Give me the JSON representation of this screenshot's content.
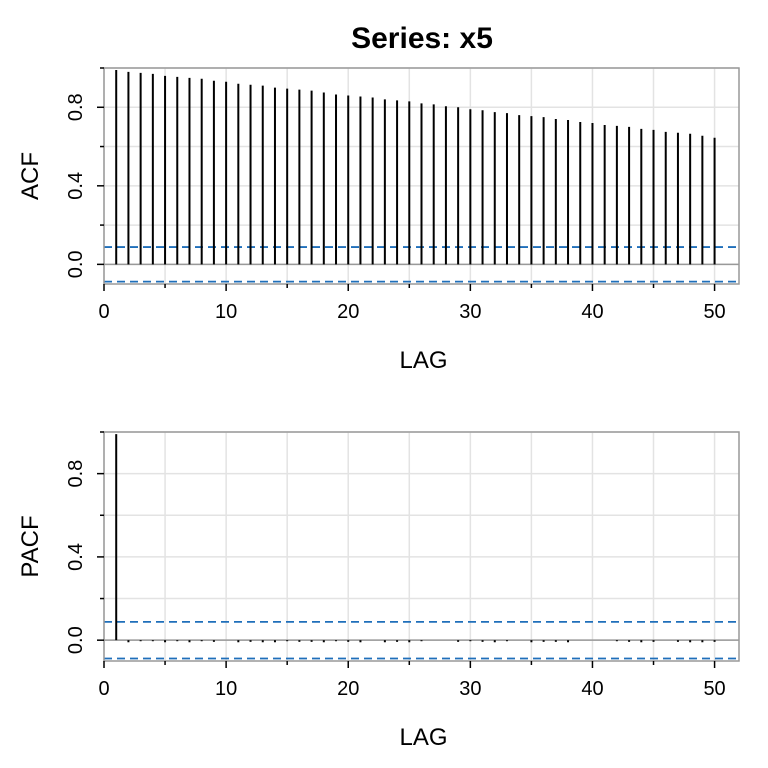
{
  "title": "Series:  x5",
  "chart_data": [
    {
      "type": "bar",
      "panel": "top",
      "xlabel": "LAG",
      "ylabel": "ACF",
      "xlim": [
        0,
        52
      ],
      "ylim": [
        -0.1,
        1.0
      ],
      "xticks": [
        0,
        10,
        20,
        30,
        40,
        50
      ],
      "yticks": [
        0.0,
        0.4,
        0.8
      ],
      "grid": true,
      "confidence_bounds": [
        0.088,
        -0.088
      ],
      "lags": [
        1,
        2,
        3,
        4,
        5,
        6,
        7,
        8,
        9,
        10,
        11,
        12,
        13,
        14,
        15,
        16,
        17,
        18,
        19,
        20,
        21,
        22,
        23,
        24,
        25,
        26,
        27,
        28,
        29,
        30,
        31,
        32,
        33,
        34,
        35,
        36,
        37,
        38,
        39,
        40,
        41,
        42,
        43,
        44,
        45,
        46,
        47,
        48,
        49,
        50
      ],
      "values": [
        0.99,
        0.98,
        0.975,
        0.97,
        0.96,
        0.955,
        0.95,
        0.945,
        0.935,
        0.93,
        0.92,
        0.915,
        0.91,
        0.9,
        0.895,
        0.89,
        0.885,
        0.875,
        0.865,
        0.86,
        0.855,
        0.85,
        0.84,
        0.835,
        0.83,
        0.82,
        0.815,
        0.805,
        0.8,
        0.79,
        0.785,
        0.775,
        0.77,
        0.76,
        0.755,
        0.75,
        0.74,
        0.735,
        0.725,
        0.72,
        0.71,
        0.705,
        0.7,
        0.69,
        0.685,
        0.675,
        0.67,
        0.665,
        0.655,
        0.645
      ]
    },
    {
      "type": "bar",
      "panel": "bottom",
      "xlabel": "LAG",
      "ylabel": "PACF",
      "xlim": [
        0,
        52
      ],
      "ylim": [
        -0.1,
        1.0
      ],
      "xticks": [
        0,
        10,
        20,
        30,
        40,
        50
      ],
      "yticks": [
        0.0,
        0.4,
        0.8
      ],
      "grid": true,
      "confidence_bounds": [
        0.088,
        -0.088
      ],
      "lags": [
        1,
        2,
        3,
        4,
        5,
        6,
        7,
        8,
        9,
        10,
        11,
        12,
        13,
        14,
        15,
        16,
        17,
        18,
        19,
        20,
        21,
        22,
        23,
        24,
        25,
        26,
        27,
        28,
        29,
        30,
        31,
        32,
        33,
        34,
        35,
        36,
        37,
        38,
        39,
        40,
        41,
        42,
        43,
        44,
        45,
        46,
        47,
        48,
        49,
        50
      ],
      "values": [
        0.99,
        -0.01,
        -0.005,
        -0.005,
        -0.01,
        -0.005,
        -0.01,
        -0.005,
        -0.008,
        0.0,
        -0.01,
        -0.008,
        -0.01,
        -0.01,
        -0.005,
        -0.008,
        -0.008,
        -0.01,
        -0.005,
        -0.008,
        -0.01,
        0.0,
        -0.01,
        -0.008,
        -0.01,
        -0.005,
        0.0,
        0.0,
        -0.008,
        -0.005,
        -0.008,
        -0.01,
        -0.005,
        0.0,
        -0.01,
        -0.008,
        -0.008,
        -0.01,
        0.0,
        0.0,
        0.0,
        -0.005,
        -0.008,
        -0.01,
        -0.008,
        0.0,
        -0.008,
        -0.01,
        -0.01,
        -0.008
      ]
    }
  ],
  "colors": {
    "frame": "#999999",
    "grid": "#e3e3e3",
    "bars": "#000000",
    "bounds": "#1f6fba",
    "zero_line": "#999999"
  }
}
